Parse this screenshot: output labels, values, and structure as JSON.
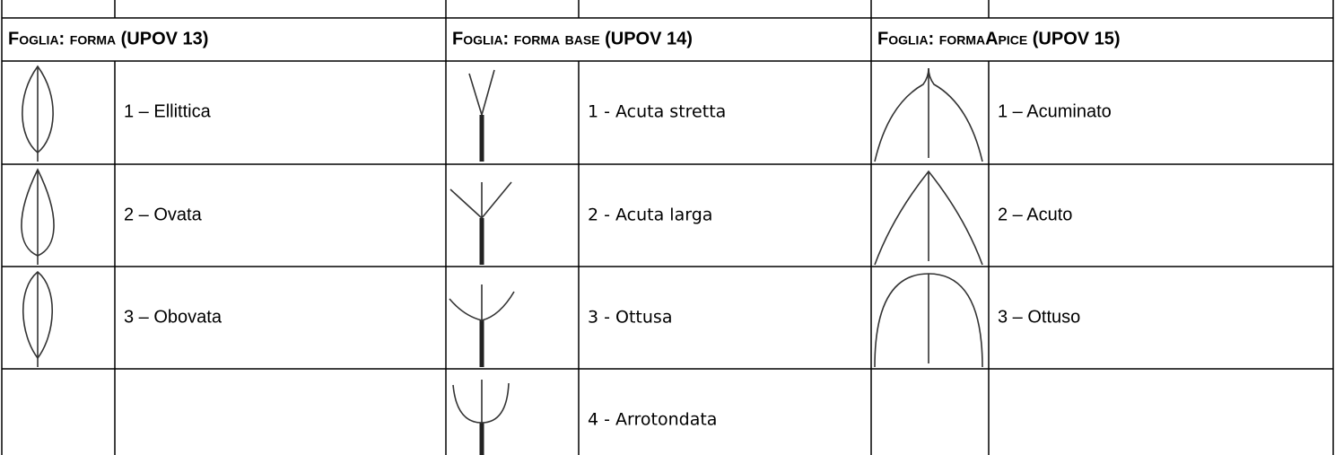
{
  "table": {
    "columns": [
      {
        "header": "Foglia: forma (UPOV 13)",
        "items": [
          "1 – Ellittica",
          "2 – Ovata",
          "3 – Obovata"
        ]
      },
      {
        "header": "Foglia: forma base (UPOV 14)",
        "items": [
          "1 - Acuta stretta",
          "2 - Acuta larga",
          "3 - Ottusa",
          "4 - Arrotondata"
        ]
      },
      {
        "header": "Foglia: formaApice (UPOV 15)",
        "items": [
          "1 – Acuminato",
          "2 – Acuto",
          "3 – Ottuso"
        ]
      }
    ]
  }
}
